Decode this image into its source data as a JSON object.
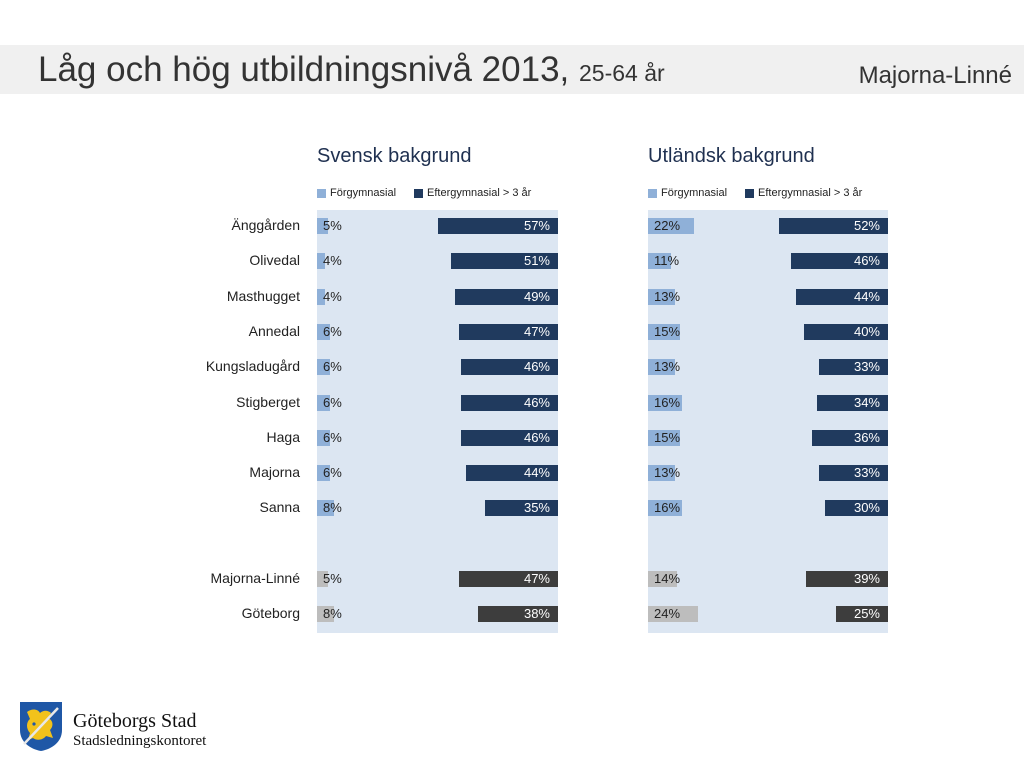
{
  "header": {
    "title": "Låg och hög utbildningsnivå 2013,",
    "subtitle": "25-64 år",
    "region": "Majorna-Linné"
  },
  "legend": {
    "low": "Förgymnasial",
    "high": "Eftergymnasial > 3 år"
  },
  "colors": {
    "low": "#8fb0d8",
    "high": "#203a5e",
    "total_low": "#bdbdbd",
    "total_high": "#3d3d3d",
    "plot_bg": "#dce6f2"
  },
  "footer": {
    "org": "Göteborgs Stad",
    "dept": "Stadsledningskontoret"
  },
  "chart_data": [
    {
      "type": "bar",
      "title": "Svensk bakgrund",
      "categories": [
        "Änggården",
        "Olivedal",
        "Masthugget",
        "Annedal",
        "Kungsladugård",
        "Stigberget",
        "Haga",
        "Majorna",
        "Sanna",
        "Majorna-Linné",
        "Göteborg"
      ],
      "series": [
        {
          "name": "Förgymnasial",
          "values": [
            5,
            4,
            4,
            6,
            6,
            6,
            6,
            6,
            8,
            5,
            8
          ]
        },
        {
          "name": "Eftergymnasial > 3 år",
          "values": [
            57,
            51,
            49,
            47,
            46,
            46,
            46,
            44,
            35,
            47,
            38
          ]
        }
      ],
      "value_labels": {
        "low": [
          "5%",
          "4%",
          "4%",
          "6%",
          "6%",
          "6%",
          "6%",
          "6%",
          "8%",
          "5%",
          "8%"
        ],
        "high": [
          "57%",
          "51%",
          "49%",
          "47%",
          "46%",
          "46%",
          "46%",
          "44%",
          "35%",
          "47%",
          "38%"
        ]
      },
      "total_rows": [
        "Majorna-Linné",
        "Göteborg"
      ],
      "xlim": [
        0,
        100
      ],
      "legend_position": "top"
    },
    {
      "type": "bar",
      "title": "Utländsk bakgrund",
      "categories": [
        "Änggården",
        "Olivedal",
        "Masthugget",
        "Annedal",
        "Kungsladugård",
        "Stigberget",
        "Haga",
        "Majorna",
        "Sanna",
        "Majorna-Linné",
        "Göteborg"
      ],
      "series": [
        {
          "name": "Förgymnasial",
          "values": [
            22,
            11,
            13,
            15,
            13,
            16,
            15,
            13,
            16,
            14,
            24
          ]
        },
        {
          "name": "Eftergymnasial > 3 år",
          "values": [
            52,
            46,
            44,
            40,
            33,
            34,
            36,
            33,
            30,
            39,
            25
          ]
        }
      ],
      "value_labels": {
        "low": [
          "22%",
          "11%",
          "13%",
          "15%",
          "13%",
          "16%",
          "15%",
          "13%",
          "16%",
          "14%",
          "24%"
        ],
        "high": [
          "52%",
          "46%",
          "44%",
          "40%",
          "33%",
          "34%",
          "36%",
          "33%",
          "30%",
          "39%",
          "25%"
        ]
      },
      "total_rows": [
        "Majorna-Linné",
        "Göteborg"
      ],
      "xlim": [
        0,
        100
      ],
      "legend_position": "top"
    }
  ]
}
